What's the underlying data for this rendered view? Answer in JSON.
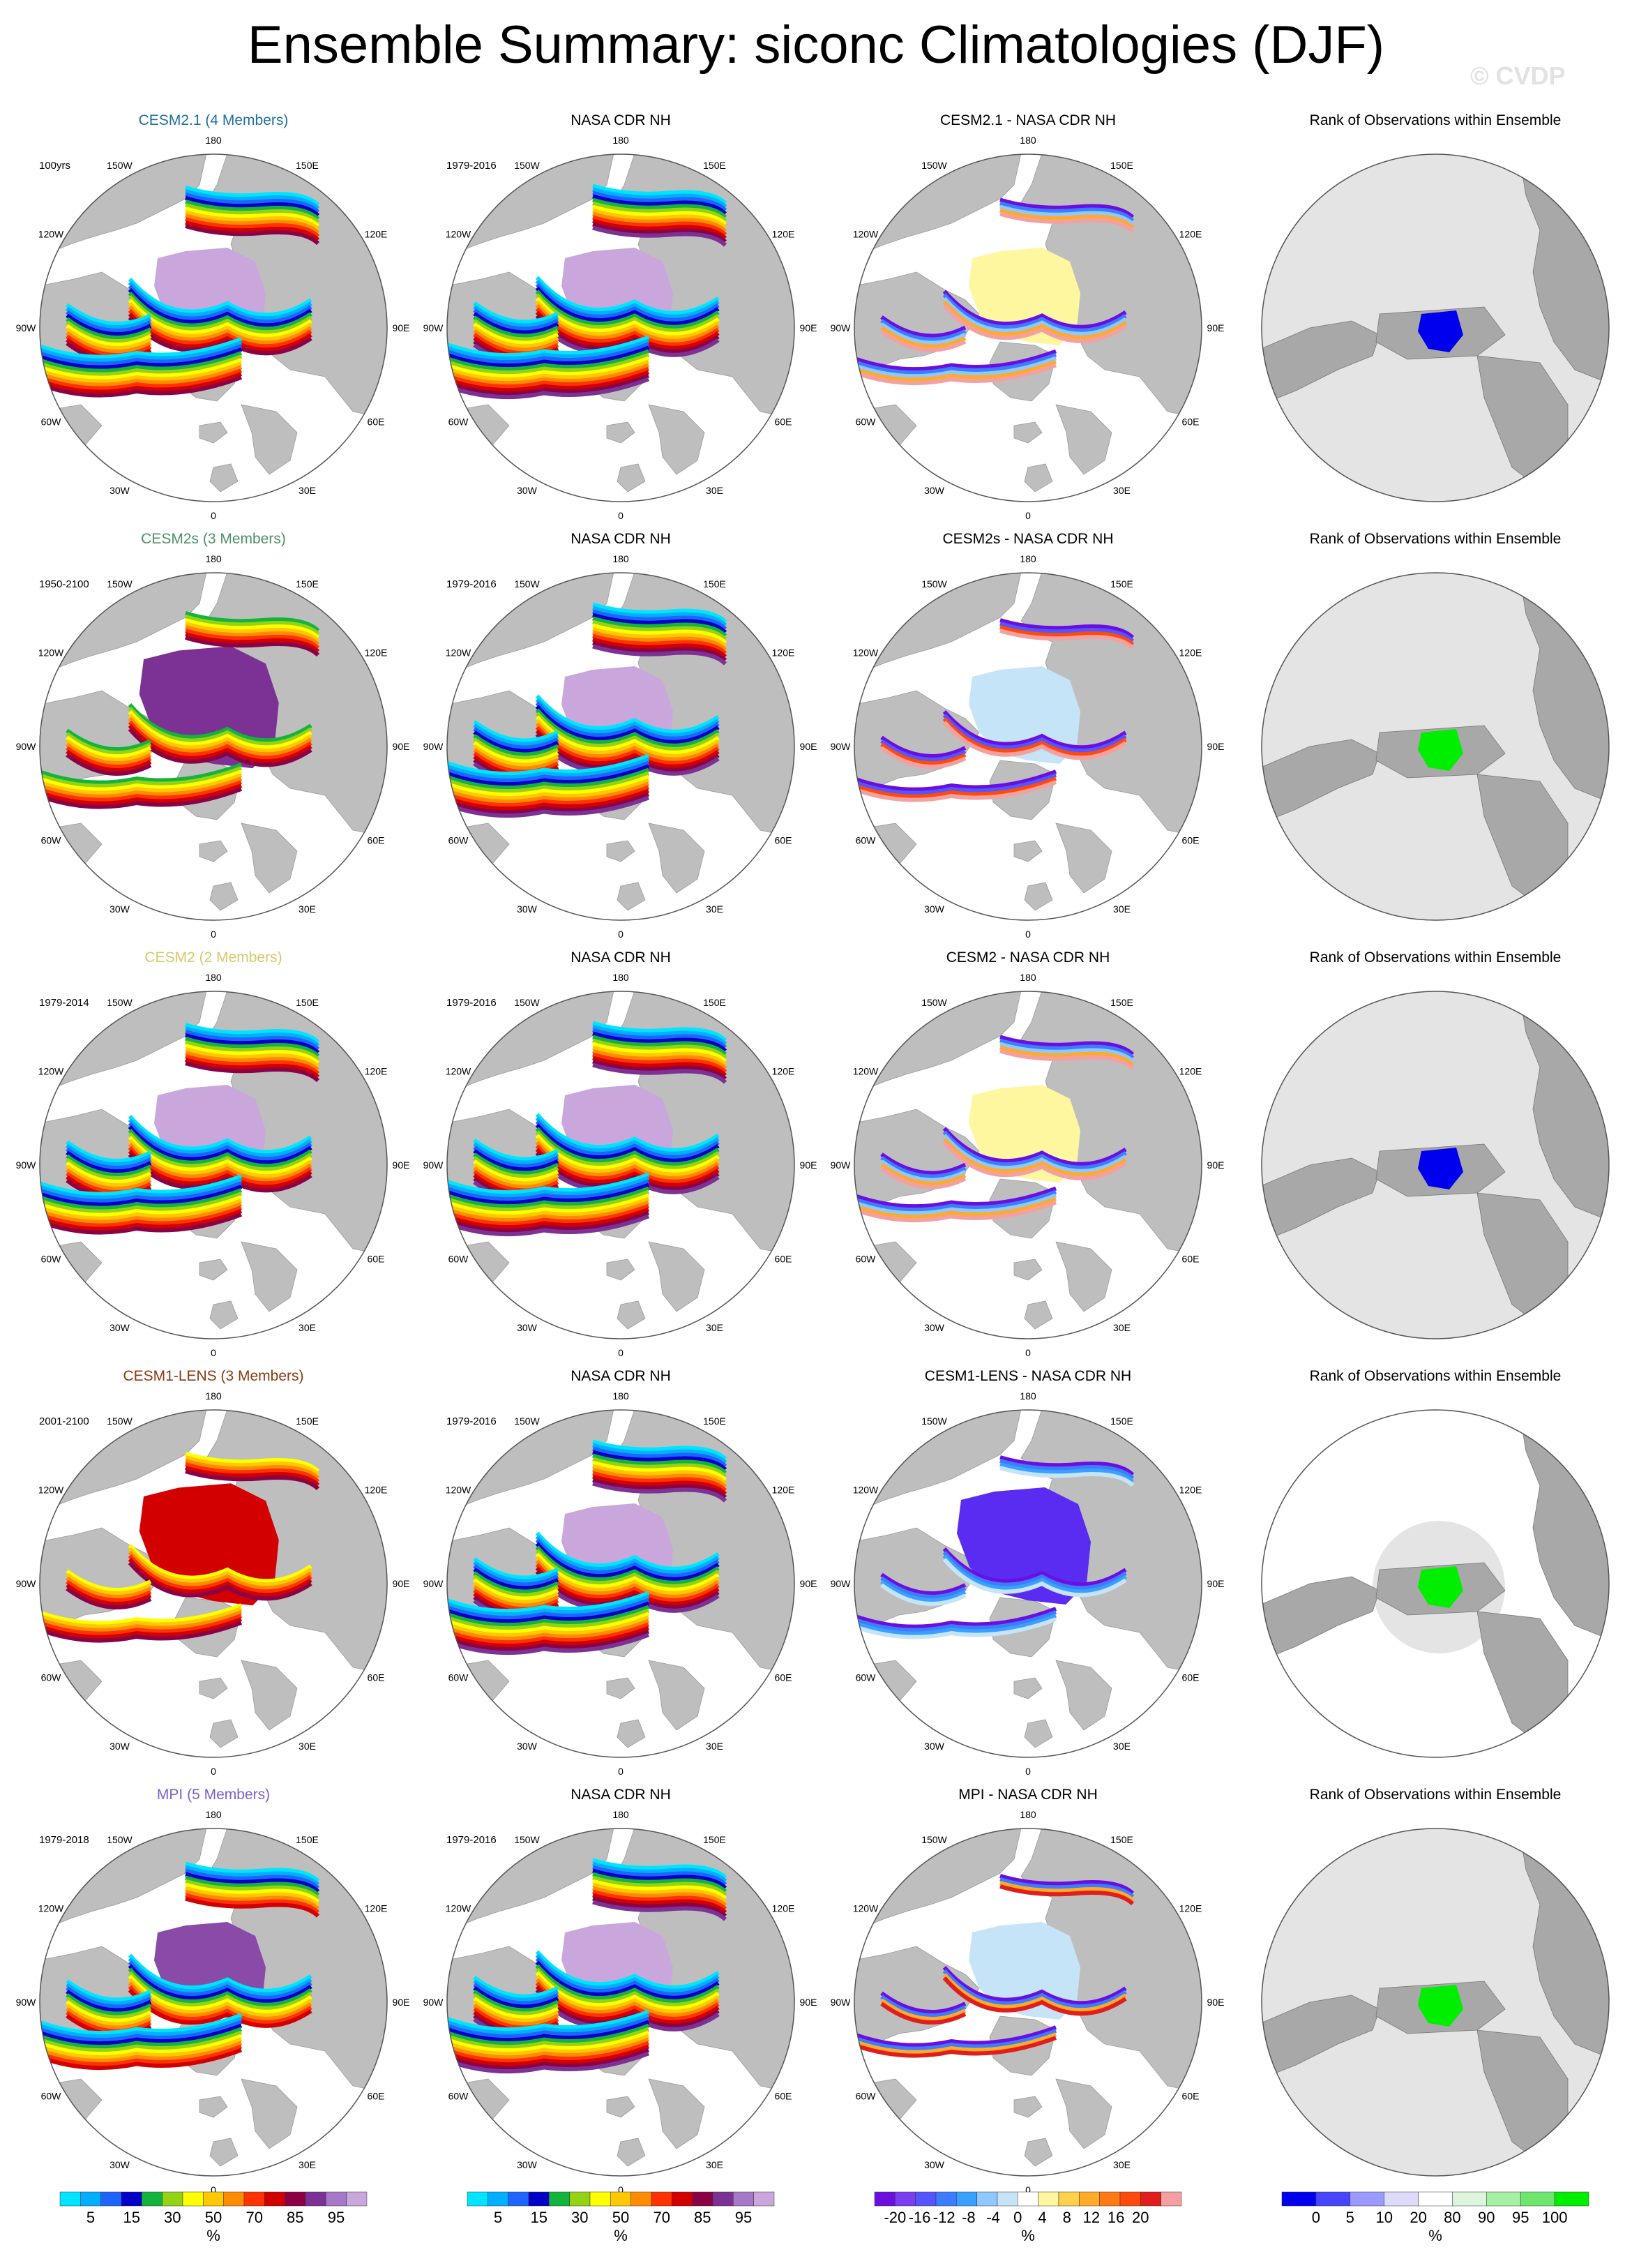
{
  "header": {
    "title": "Ensemble Summary: siconc Climatologies (DJF)",
    "watermark": "© CVDP"
  },
  "lon_labels": [
    "180",
    "150E",
    "120E",
    "90E",
    "60E",
    "30E",
    "0",
    "30W",
    "60W",
    "90W",
    "120W",
    "150W"
  ],
  "columns": {
    "obs_title": "NASA CDR NH",
    "rank_title": "Rank of Observations within Ensemble"
  },
  "rows": [
    {
      "model_title": "CESM2.1 (4 Members)",
      "title_color": "#1f6f9f",
      "period": "100yrs",
      "obs_period": "1979-2016",
      "diff_title": "CESM2.1 - NASA CDR NH",
      "ice_style": "normal",
      "diff_style": "positive",
      "rank_style": "blue"
    },
    {
      "model_title": "CESM2s (3 Members)",
      "title_color": "#4f8f6a",
      "period": "1950-2100",
      "obs_period": "1979-2016",
      "diff_title": "CESM2s - NASA CDR NH",
      "ice_style": "extended",
      "diff_style": "negative",
      "rank_style": "green"
    },
    {
      "model_title": "CESM2 (2 Members)",
      "title_color": "#d8c76a",
      "period": "1979-2014",
      "obs_period": "1979-2016",
      "diff_title": "CESM2 - NASA CDR NH",
      "ice_style": "normal",
      "diff_style": "positive",
      "rank_style": "blue"
    },
    {
      "model_title": "CESM1-LENS (3 Members)",
      "title_color": "#8b3a0e",
      "period": "2001-2100",
      "obs_period": "1979-2016",
      "diff_title": "CESM1-LENS - NASA CDR NH",
      "ice_style": "lens",
      "diff_style": "strong-negative",
      "rank_style": "green-halo"
    },
    {
      "model_title": "MPI (5 Members)",
      "title_color": "#7b5fd0",
      "period": "1979-2018",
      "obs_period": "1979-2016",
      "diff_title": "MPI - NASA CDR NH",
      "ice_style": "mpi",
      "diff_style": "light-negative",
      "rank_style": "green"
    }
  ],
  "colorbars": {
    "concentration": {
      "unit": "%",
      "labels": [
        "5",
        "15",
        "30",
        "50",
        "70",
        "85",
        "95"
      ],
      "colors": [
        "#00e5ff",
        "#00b0ff",
        "#1e64ff",
        "#0000c8",
        "#14b43c",
        "#96d214",
        "#ffff00",
        "#ffc800",
        "#ff8c00",
        "#ff3200",
        "#d20000",
        "#8c0046",
        "#7b3294",
        "#a878c8",
        "#c9a6dc"
      ]
    },
    "difference": {
      "unit": "%",
      "labels": [
        "-20",
        "-16",
        "-12",
        "-8",
        "-4",
        "0",
        "4",
        "8",
        "12",
        "16",
        "20"
      ],
      "colors": [
        "#6a0fe0",
        "#7a3df0",
        "#5555ff",
        "#3c7cff",
        "#3aa0ff",
        "#8fc8ff",
        "#c6e4f7",
        "#ffffff",
        "#fff6a0",
        "#ffd04a",
        "#ffaa28",
        "#ff7a14",
        "#ff4a0a",
        "#e01e1e",
        "#f5a0a0"
      ]
    },
    "rank": {
      "unit": "%",
      "labels": [
        "0",
        "5",
        "10",
        "20",
        "80",
        "90",
        "95",
        "100"
      ],
      "colors": [
        "#0000ee",
        "#4646ff",
        "#9a9aff",
        "#dcdcf8",
        "#ffffff",
        "#dcf5dc",
        "#a6f0a6",
        "#6ee66e",
        "#00ee00"
      ]
    }
  },
  "colors": {
    "land": "#bebebe",
    "ocean": "#ffffff",
    "rank_fill": "#e4e4e4"
  }
}
